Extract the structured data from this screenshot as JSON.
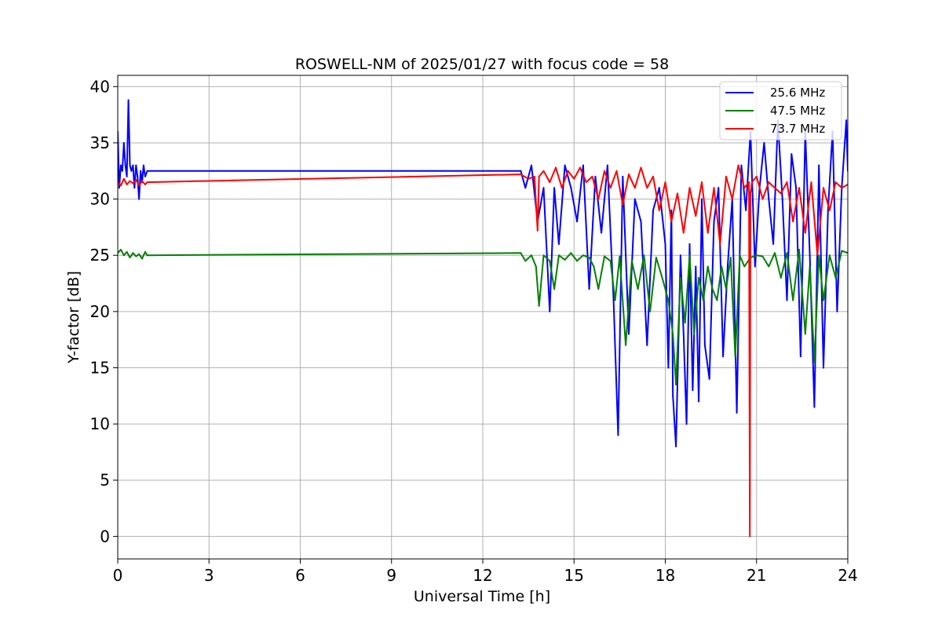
{
  "chart_data": {
    "type": "line",
    "title": "ROSWELL-NM of 2025/01/27 with focus code = 58",
    "xlabel": "Universal Time [h]",
    "ylabel": "Y-factor [dB]",
    "xlim": [
      0,
      24
    ],
    "ylim": [
      -2,
      41
    ],
    "xticks": [
      0,
      3,
      6,
      9,
      12,
      15,
      18,
      21,
      24
    ],
    "xtick_labels": [
      "0",
      "3",
      "6",
      "9",
      "12",
      "15",
      "18",
      "21",
      "24"
    ],
    "yticks": [
      0,
      5,
      10,
      15,
      20,
      25,
      30,
      35,
      40
    ],
    "ytick_labels": [
      "0",
      "5",
      "10",
      "15",
      "20",
      "25",
      "30",
      "35",
      "40"
    ],
    "grid": true,
    "legend_position": "top-right",
    "series": [
      {
        "name": "25.6 MHz",
        "color": "#0000ff",
        "x": [
          0,
          0.05,
          0.1,
          0.15,
          0.2,
          0.25,
          0.3,
          0.35,
          0.4,
          0.45,
          0.5,
          0.55,
          0.6,
          0.65,
          0.7,
          0.75,
          0.8,
          0.85,
          0.9,
          0.97,
          13.25,
          13.4,
          13.6,
          13.8,
          14.0,
          14.2,
          14.35,
          14.5,
          14.7,
          14.9,
          15.1,
          15.3,
          15.5,
          15.7,
          15.9,
          16.1,
          16.3,
          16.45,
          16.6,
          16.8,
          17.0,
          17.2,
          17.4,
          17.6,
          17.8,
          18.0,
          18.1,
          18.2,
          18.25,
          18.35,
          18.5,
          18.6,
          18.7,
          18.8,
          18.9,
          19.0,
          19.1,
          19.2,
          19.3,
          19.45,
          19.6,
          19.75,
          19.9,
          20.05,
          20.2,
          20.35,
          20.5,
          20.65,
          20.8,
          20.95,
          21.1,
          21.25,
          21.4,
          21.55,
          21.7,
          21.85,
          22.0,
          22.15,
          22.3,
          22.45,
          22.6,
          22.75,
          22.9,
          23.05,
          23.2,
          23.35,
          23.5,
          23.65,
          23.8,
          23.95,
          24.0
        ],
        "values": [
          36,
          31,
          33,
          32.5,
          35,
          33,
          32,
          38.8,
          33,
          32.5,
          33,
          31,
          33,
          32,
          30,
          32.5,
          31.5,
          33,
          32,
          32.5,
          32.5,
          31,
          33,
          28,
          31,
          20,
          31,
          26,
          33,
          31,
          28,
          33,
          22,
          32,
          27,
          33,
          21,
          9,
          32,
          18,
          30,
          28,
          17,
          29,
          31,
          26,
          15,
          29,
          12.5,
          8,
          25,
          18,
          10,
          26,
          13,
          24,
          12,
          30,
          17,
          14,
          28,
          31,
          16,
          24,
          30,
          11,
          33,
          29,
          36,
          24,
          31,
          35,
          30,
          26,
          37,
          30,
          21,
          34,
          31,
          16,
          36,
          25,
          11.5,
          33,
          15,
          29,
          36,
          20,
          31,
          37,
          32.5
        ]
      },
      {
        "name": "47.5 MHz",
        "color": "#008000",
        "x": [
          0,
          0.1,
          0.2,
          0.3,
          0.4,
          0.5,
          0.6,
          0.7,
          0.8,
          0.9,
          0.97,
          13.25,
          13.4,
          13.6,
          13.75,
          13.85,
          14.0,
          14.2,
          14.35,
          14.5,
          14.7,
          14.9,
          15.1,
          15.3,
          15.5,
          15.65,
          15.8,
          16.0,
          16.2,
          16.35,
          16.5,
          16.7,
          16.9,
          17.1,
          17.3,
          17.5,
          17.7,
          17.9,
          18.1,
          18.25,
          18.35,
          18.5,
          18.65,
          18.8,
          18.95,
          19.1,
          19.25,
          19.4,
          19.55,
          19.7,
          19.85,
          20.0,
          20.15,
          20.3,
          20.45,
          20.6,
          20.8,
          21.0,
          21.2,
          21.4,
          21.6,
          21.8,
          22.0,
          22.2,
          22.4,
          22.6,
          22.75,
          22.9,
          23.05,
          23.2,
          23.4,
          23.6,
          23.8,
          24.0
        ],
        "values": [
          25.2,
          25.5,
          25,
          25.3,
          24.8,
          25.2,
          24.9,
          25.1,
          24.7,
          25.3,
          25,
          25.2,
          24.5,
          25,
          24,
          20.5,
          25,
          24.5,
          22,
          25,
          24.6,
          25.2,
          24.5,
          25,
          24.8,
          24,
          22,
          24.9,
          24.5,
          21,
          24.9,
          17,
          24.5,
          22,
          25,
          20,
          24.8,
          23,
          21,
          18,
          13.5,
          23,
          19,
          25,
          18,
          23,
          21,
          24,
          22,
          21,
          24,
          22,
          24.8,
          16,
          25,
          24,
          24.8,
          25,
          24.9,
          24,
          25.2,
          23,
          25.2,
          21,
          25.5,
          18,
          24,
          15.5,
          25,
          21,
          25,
          23,
          25.4,
          25.2
        ]
      },
      {
        "name": "73.7 MHz",
        "color": "#ff0000",
        "x": [
          0,
          0.1,
          0.2,
          0.3,
          0.4,
          0.5,
          0.6,
          0.7,
          0.8,
          0.9,
          0.97,
          13.25,
          13.5,
          13.7,
          13.8,
          13.85,
          14.0,
          14.2,
          14.4,
          14.6,
          14.8,
          15.0,
          15.2,
          15.4,
          15.6,
          15.8,
          16.0,
          16.2,
          16.4,
          16.6,
          16.8,
          17.0,
          17.2,
          17.4,
          17.6,
          17.8,
          18.0,
          18.2,
          18.4,
          18.6,
          18.8,
          19.0,
          19.2,
          19.4,
          19.6,
          19.8,
          20.0,
          20.2,
          20.4,
          20.6,
          20.75,
          20.78,
          20.8,
          20.85,
          21.0,
          21.2,
          21.4,
          21.6,
          21.8,
          22.0,
          22.2,
          22.4,
          22.6,
          22.8,
          23.0,
          23.2,
          23.4,
          23.6,
          23.8,
          24.0
        ],
        "values": [
          31.5,
          31.2,
          31.8,
          31.3,
          31.6,
          31.4,
          31.7,
          31.2,
          31.6,
          31.3,
          31.5,
          32.2,
          31.8,
          32,
          27.2,
          32,
          32.5,
          31.5,
          32.8,
          31,
          32.5,
          31.8,
          32.8,
          31.5,
          32,
          30,
          32.5,
          31,
          32.5,
          29.5,
          32.2,
          31,
          32.8,
          31,
          32,
          29,
          31.5,
          28,
          30.5,
          27,
          31,
          28.5,
          31.5,
          27,
          31,
          26,
          32,
          30,
          33,
          31,
          31.5,
          0,
          30.5,
          31.5,
          32,
          30,
          31.5,
          31,
          30.5,
          31.5,
          28,
          31,
          27,
          31.5,
          25,
          31,
          29,
          31.5,
          31,
          31.3
        ]
      }
    ]
  }
}
